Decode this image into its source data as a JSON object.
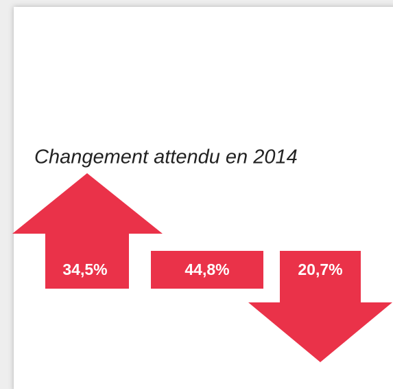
{
  "title": "Changement attendu en 2014",
  "items": [
    {
      "label": "34,5%"
    },
    {
      "label": "44,8%"
    },
    {
      "label": "20,7%"
    }
  ]
}
